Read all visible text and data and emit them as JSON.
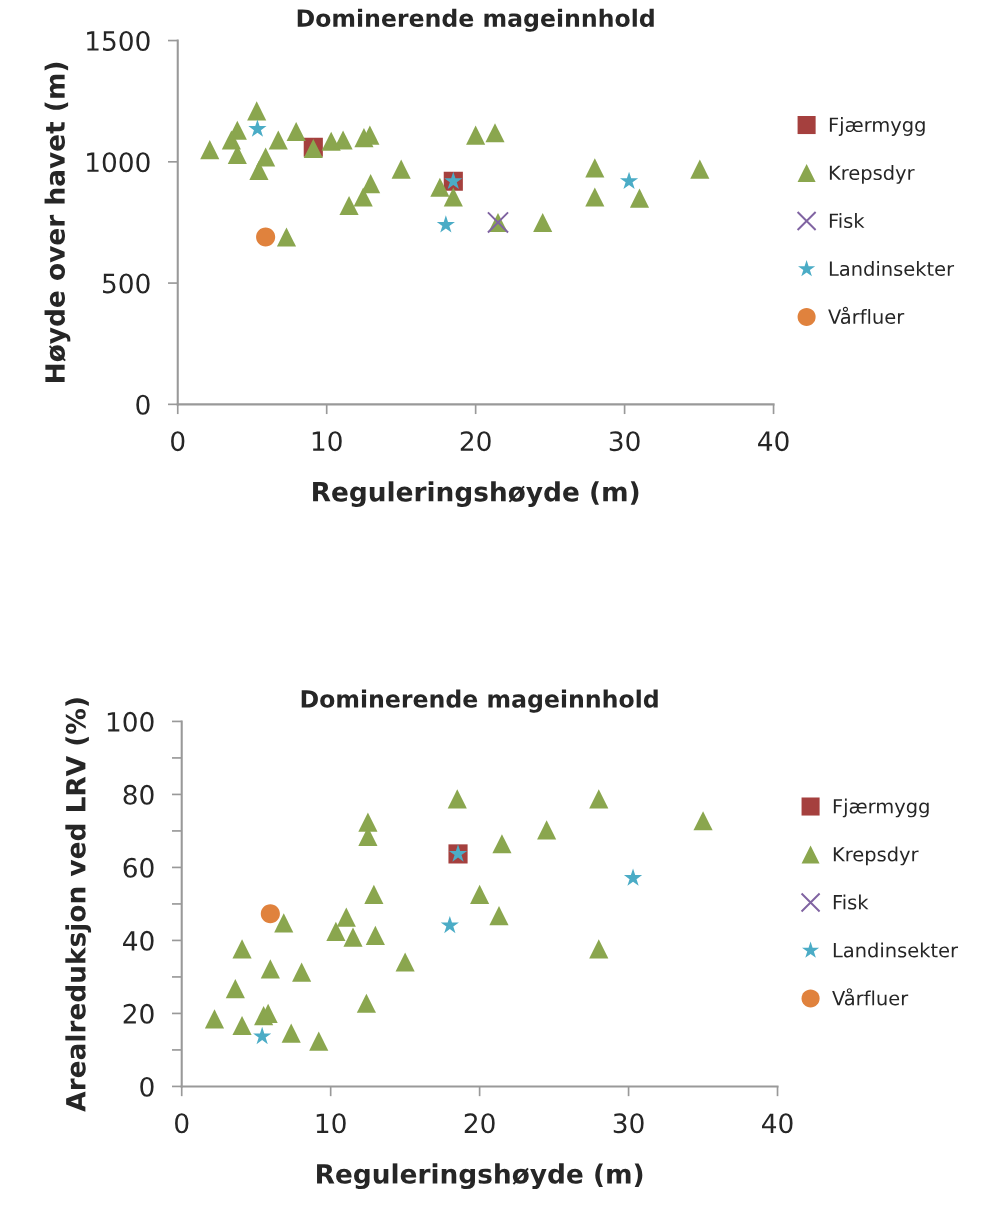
{
  "chart_data": [
    {
      "type": "scatter",
      "title": "Dominerende mageinnhold",
      "xlabel": "Reguleringshøyde (m)",
      "ylabel": "Høyde over havet (m)",
      "xlim": [
        0,
        40
      ],
      "ylim": [
        0,
        1500
      ],
      "xticks": [
        0,
        10,
        20,
        30,
        40
      ],
      "yticks": [
        0,
        500,
        1000,
        1500
      ],
      "grid": false,
      "legend": "right",
      "series": [
        {
          "name": "Fjærmygg",
          "color": "#a5403e",
          "marker": "square",
          "x": [
            9.1,
            18.5
          ],
          "values": [
            1060,
            920
          ]
        },
        {
          "name": "Krepsdyr",
          "color": "#8aa64e",
          "marker": "triangle",
          "x": [
            2.15,
            3.6,
            4.0,
            4.0,
            5.3,
            5.45,
            5.9,
            6.75,
            7.3,
            7.95,
            9.1,
            10.3,
            11.1,
            11.5,
            12.45,
            12.5,
            12.95,
            12.9,
            15.0,
            17.6,
            18.5,
            21.5,
            20.0,
            21.3,
            24.5,
            28.0,
            28.0,
            31.0,
            35.05
          ],
          "values": [
            1050,
            1090,
            1130,
            1030,
            1210,
            965,
            1020,
            1090,
            690,
            1125,
            1055,
            1085,
            1090,
            820,
            855,
            1100,
            910,
            1110,
            970,
            895,
            855,
            750,
            1110,
            1120,
            750,
            975,
            855,
            850,
            970
          ]
        },
        {
          "name": "Fisk",
          "color": "#8064a2",
          "marker": "cross",
          "x": [
            21.5
          ],
          "values": [
            750
          ]
        },
        {
          "name": "Landinsekter",
          "color": "#4bacc6",
          "marker": "star",
          "x": [
            5.35,
            18.0,
            18.5,
            30.3
          ],
          "values": [
            1135,
            740,
            920,
            920
          ]
        },
        {
          "name": "Vårfluer",
          "color": "#e0823d",
          "marker": "circle",
          "x": [
            5.9
          ],
          "values": [
            690
          ]
        }
      ]
    },
    {
      "type": "scatter",
      "title": "Dominerende mageinnhold",
      "xlabel": "Reguleringshøyde (m)",
      "ylabel": "Arealreduksjon ved LRV (%)",
      "xlim": [
        0,
        40
      ],
      "ylim": [
        0,
        100
      ],
      "xticks": [
        0,
        10,
        20,
        30,
        40
      ],
      "yticks": [
        0,
        {
          "value": 10,
          "label": null
        },
        20,
        {
          "value": 30,
          "label": null
        },
        40,
        {
          "value": 50,
          "label": null
        },
        60,
        {
          "value": 70,
          "label": null
        },
        80,
        {
          "value": 90,
          "label": null
        },
        100
      ],
      "grid": false,
      "legend": "right",
      "series": [
        {
          "name": "Fjærmygg",
          "color": "#a5403e",
          "marker": "square",
          "x": [
            18.55
          ],
          "values": [
            63.7
          ]
        },
        {
          "name": "Krepsdyr",
          "color": "#8aa64e",
          "marker": "triangle",
          "x": [
            2.2,
            3.6,
            4.05,
            4.05,
            5.5,
            5.8,
            5.95,
            6.85,
            7.35,
            8.05,
            9.2,
            10.35,
            11.05,
            11.5,
            12.5,
            12.5,
            12.4,
            12.9,
            13.0,
            15.0,
            18.5,
            20.0,
            21.5,
            24.5,
            28.0,
            21.3,
            28.0,
            35.0
          ],
          "values": [
            18.5,
            26.8,
            37.7,
            16.7,
            19.4,
            20,
            32.2,
            44.8,
            14.6,
            31.3,
            12.4,
            42.5,
            46.4,
            40.9,
            72.4,
            68.5,
            22.8,
            52.6,
            41.4,
            34.1,
            78.8,
            52.6,
            66.5,
            70.3,
            78.8,
            46.8,
            37.7,
            72.8
          ]
        },
        {
          "name": "Fisk",
          "color": "#8064a2",
          "marker": "cross"
        },
        {
          "name": "Landinsekter",
          "color": "#4bacc6",
          "marker": "star",
          "x": [
            5.4,
            18.0,
            18.55,
            30.3
          ],
          "values": [
            13.7,
            44.1,
            63.7,
            57.1
          ]
        },
        {
          "name": "Vårfluer",
          "color": "#e0823d",
          "marker": "circle",
          "x": [
            5.95
          ],
          "values": [
            47.3
          ]
        }
      ]
    }
  ]
}
